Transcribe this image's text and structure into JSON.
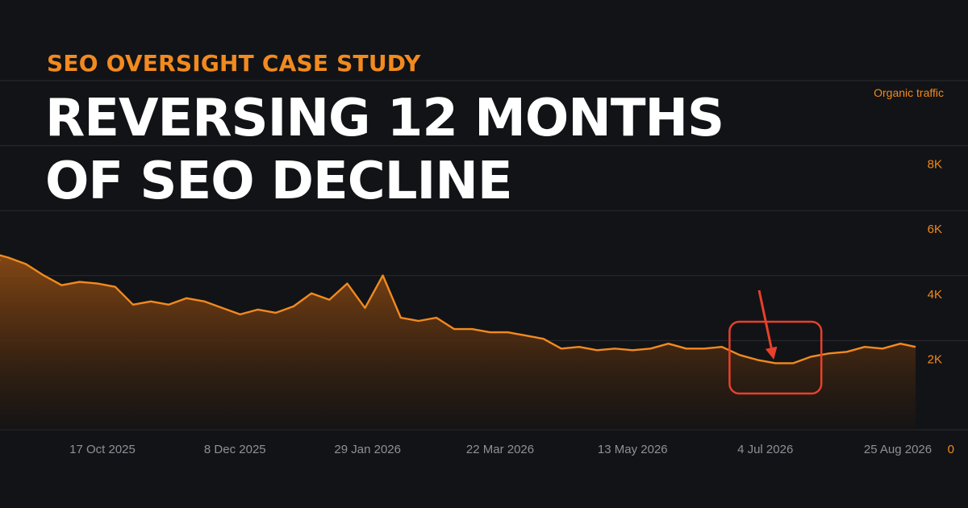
{
  "eyebrow": "SEO OVERSIGHT CASE STUDY",
  "headline": {
    "line1": "REVERSING 12 MONTHS",
    "line2": "OF SEO DECLINE"
  },
  "colors": {
    "accent": "#f28a1e",
    "highlight": "#e8402a",
    "background": "#121316",
    "headline": "#ffffff",
    "axis_text": "#9a9ba0"
  },
  "chart_data": {
    "type": "area",
    "series": [
      {
        "name": "Organic traffic",
        "x": [
          "2025-08-27",
          "2025-09-03",
          "2025-09-10",
          "2025-09-17",
          "2025-09-24",
          "2025-10-01",
          "2025-10-08",
          "2025-10-15",
          "2025-10-22",
          "2025-10-29",
          "2025-11-05",
          "2025-11-12",
          "2025-11-19",
          "2025-11-26",
          "2025-12-03",
          "2025-12-10",
          "2025-12-17",
          "2025-12-24",
          "2025-12-31",
          "2026-01-07",
          "2026-01-14",
          "2026-01-21",
          "2026-01-28",
          "2026-02-04",
          "2026-02-11",
          "2026-02-18",
          "2026-02-25",
          "2026-03-04",
          "2026-03-11",
          "2026-03-18",
          "2026-03-25",
          "2026-04-01",
          "2026-04-08",
          "2026-04-15",
          "2026-04-22",
          "2026-04-29",
          "2026-05-06",
          "2026-05-13",
          "2026-05-20",
          "2026-05-27",
          "2026-06-03",
          "2026-06-10",
          "2026-06-17",
          "2026-06-24",
          "2026-07-01",
          "2026-07-08",
          "2026-07-15",
          "2026-07-22",
          "2026-07-29",
          "2026-08-05",
          "2026-08-12",
          "2026-08-19",
          "2026-08-26",
          "2026-08-31"
        ],
        "y": [
          5200,
          5450,
          5300,
          5100,
          4750,
          4450,
          4550,
          4500,
          4400,
          3850,
          3950,
          3850,
          4050,
          3950,
          3750,
          3550,
          3700,
          3600,
          3800,
          4200,
          4000,
          4500,
          3750,
          4750,
          3450,
          3350,
          3450,
          3100,
          3100,
          3000,
          3000,
          2900,
          2800,
          2500,
          2550,
          2450,
          2500,
          2450,
          2500,
          2650,
          2500,
          2500,
          2550,
          2300,
          2150,
          2050,
          2050,
          2250,
          2350,
          2400,
          2550,
          2500,
          2650,
          2550
        ]
      }
    ],
    "x_ticks": [
      "17 Oct 2025",
      "8 Dec 2025",
      "29 Jan 2026",
      "22 Mar 2026",
      "13 May 2026",
      "4 Jul 2026",
      "25 Aug 2026"
    ],
    "y_ticks": [
      "0",
      "2K",
      "4K",
      "6K",
      "8K"
    ],
    "ylabel": "Organic traffic",
    "ylim": [
      0,
      10000
    ],
    "grid": true,
    "y_axis_position": "right",
    "annotation": {
      "x_start": "2026-06-20",
      "x_end": "2026-07-26",
      "y_min": 1000,
      "y_max": 2700,
      "arrow_to": [
        "2026-07-01",
        2150
      ]
    }
  }
}
